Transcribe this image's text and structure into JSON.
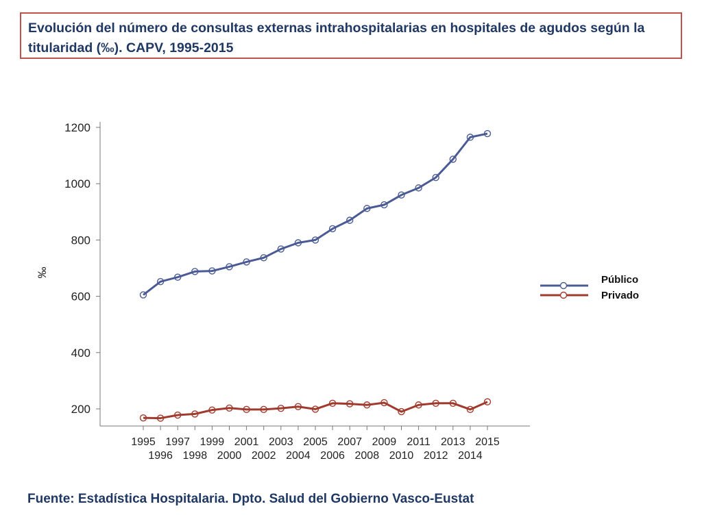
{
  "title": "Evolución del número de consultas externas intrahospitalarias en hospitales de agudos según la titularidad (‰). CAPV, 1995-2015",
  "source": "Fuente: Estadística Hospitalaria. Dpto. Salud del Gobierno Vasco-Eustat",
  "chart_data": {
    "type": "line",
    "title": "Evolución del número de consultas externas intrahospitalarias en hospitales de agudos según la titularidad (‰). CAPV, 1995-2015",
    "xlabel": "",
    "ylabel": "‰",
    "ylim": [
      150,
      1220
    ],
    "yticks": [
      200,
      400,
      600,
      800,
      1000,
      1200
    ],
    "categories": [
      "1995",
      "1996",
      "1997",
      "1998",
      "1999",
      "2000",
      "2001",
      "2002",
      "2003",
      "2004",
      "2005",
      "2006",
      "2007",
      "2008",
      "2009",
      "2010",
      "2011",
      "2012",
      "2013",
      "2014",
      "2015"
    ],
    "legend_position": "right",
    "series": [
      {
        "name": "Público",
        "color": "#4a5a94",
        "values": [
          605,
          652,
          668,
          688,
          690,
          705,
          722,
          737,
          768,
          790,
          800,
          840,
          870,
          912,
          925,
          960,
          985,
          1022,
          1087,
          1165,
          1178
        ]
      },
      {
        "name": "Privado",
        "color": "#a03a2c",
        "values": [
          168,
          167,
          178,
          182,
          196,
          203,
          198,
          198,
          202,
          208,
          199,
          220,
          218,
          214,
          222,
          190,
          214,
          220,
          220,
          198,
          225
        ]
      }
    ]
  }
}
